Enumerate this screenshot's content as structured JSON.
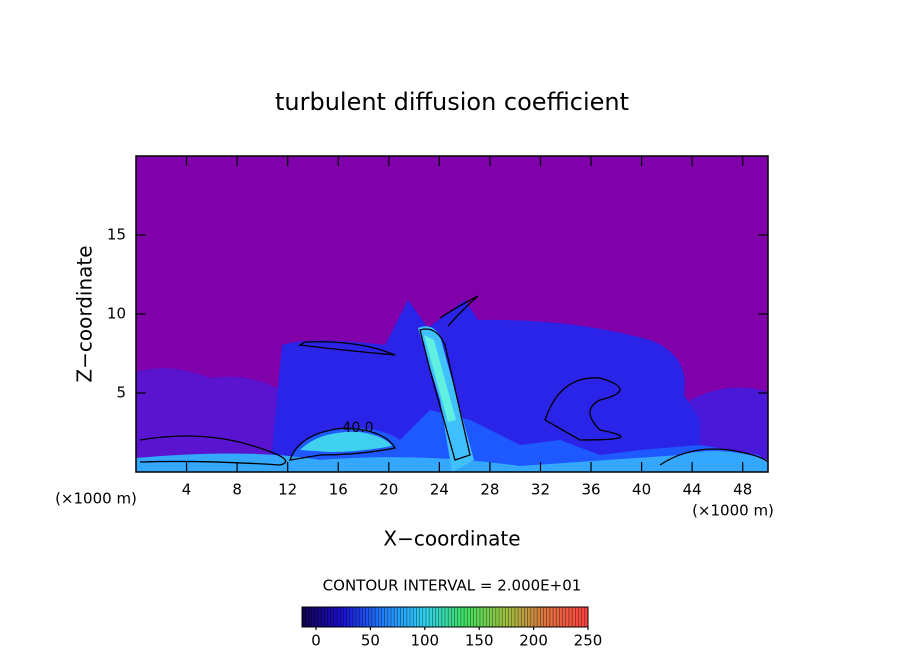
{
  "chart_data": {
    "type": "heatmap",
    "title": "turbulent diffusion coefficient",
    "x_label": "X−coordinate",
    "y_label": "Z−coordinate",
    "x_unit_left": "(×1000 m)",
    "x_unit_right": "(×1000 m)",
    "contour_note": "CONTOUR INTERVAL = 2.000E+01",
    "contour_label": "40.0",
    "xlim": [
      0,
      50
    ],
    "xticks": [
      4,
      8,
      12,
      16,
      20,
      24,
      28,
      32,
      36,
      40,
      44,
      48
    ],
    "ylim": [
      0,
      20
    ],
    "yticks": [
      5,
      10,
      15
    ],
    "colorbar": {
      "lim": [
        0,
        250
      ],
      "ticks": [
        0,
        50,
        100,
        150,
        200,
        250
      ],
      "colormap": [
        "#10004a",
        "#1a10d0",
        "#2080ff",
        "#30d0f0",
        "#40e060",
        "#a0c040",
        "#e07040",
        "#ff4040"
      ]
    }
  }
}
